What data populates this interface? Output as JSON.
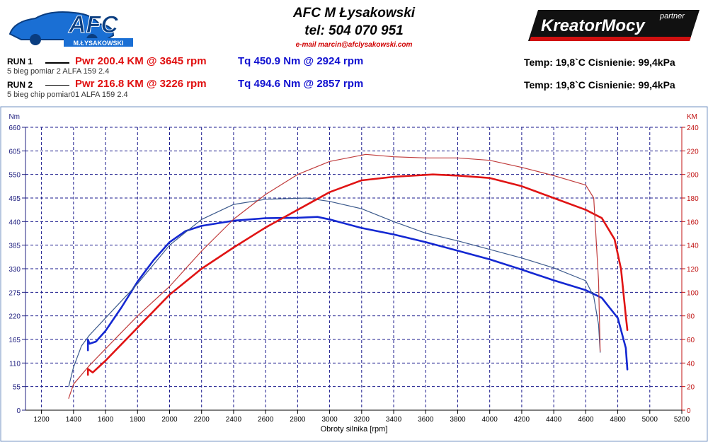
{
  "header": {
    "logo_left_text": "AFC",
    "logo_left_sub": "M.ŁYSAKOWSKI",
    "company": "AFC M Łysakowski",
    "tel": "tel: 504 070 951",
    "email": "e-mail marcin@afclysakowski.com",
    "logo_right_text": "KreatorMocy",
    "logo_right_partner": "partner"
  },
  "runs": [
    {
      "label": "RUN 1",
      "desc": "5 bieg  pomiar 2 ALFA 159 2.4",
      "pwr": "Pwr  200.4 KM @ 3645 rpm",
      "tq": "Tq 450.9 Nm @ 2924 rpm",
      "env": "Temp: 19,8`C   Cisnienie: 99,4kPa"
    },
    {
      "label": "RUN 2",
      "desc": "5 bieg chip pomiar01 ALFA 159 2.4",
      "pwr": "Pwr  216.8 KM @ 3226 rpm",
      "tq": "Tq 494.6 Nm @ 2857 rpm",
      "env": "Temp: 19,8`C   Cisnienie: 99,4kPa"
    }
  ],
  "colors": {
    "torque_run1": "#1428d2",
    "torque_run2": "#3c5a8c",
    "power_run1": "#e01414",
    "power_run2": "#c03c3c",
    "grid": "#1a1a8c",
    "left_axis": "#202080",
    "right_axis": "#c01010"
  },
  "chart_data": {
    "type": "line",
    "xlabel": "Obroty silnika [rpm]",
    "ylabel_left": "Nm",
    "ylabel_right": "KM",
    "xlim": [
      1100,
      5200
    ],
    "ylim_left": [
      0,
      660
    ],
    "ylim_right": [
      0,
      240
    ],
    "x_ticks": [
      1200,
      1400,
      1600,
      1800,
      2000,
      2200,
      2400,
      2600,
      2800,
      3000,
      3200,
      3400,
      3600,
      3800,
      4000,
      4200,
      4400,
      4600,
      4800,
      5000,
      5200
    ],
    "y_left_ticks": [
      0,
      55,
      110,
      165,
      220,
      275,
      330,
      385,
      440,
      495,
      550,
      605,
      660
    ],
    "y_right_ticks": [
      0,
      20,
      40,
      60,
      80,
      100,
      120,
      140,
      160,
      180,
      200,
      220,
      240
    ],
    "grid": true,
    "series": [
      {
        "name": "RUN 1",
        "quantity": "torque",
        "axis": "left",
        "points": [
          [
            1490,
            140
          ],
          [
            1490,
            165
          ],
          [
            1500,
            155
          ],
          [
            1540,
            160
          ],
          [
            1600,
            185
          ],
          [
            1700,
            240
          ],
          [
            1800,
            300
          ],
          [
            1900,
            350
          ],
          [
            2000,
            392
          ],
          [
            2100,
            418
          ],
          [
            2200,
            430
          ],
          [
            2400,
            442
          ],
          [
            2600,
            448
          ],
          [
            2800,
            449
          ],
          [
            2924,
            451
          ],
          [
            3000,
            445
          ],
          [
            3200,
            425
          ],
          [
            3400,
            410
          ],
          [
            3600,
            392
          ],
          [
            3800,
            372
          ],
          [
            4000,
            352
          ],
          [
            4200,
            328
          ],
          [
            4400,
            303
          ],
          [
            4600,
            280
          ],
          [
            4700,
            262
          ],
          [
            4800,
            215
          ],
          [
            4850,
            145
          ],
          [
            4860,
            95
          ]
        ]
      },
      {
        "name": "RUN 2",
        "quantity": "torque",
        "axis": "left",
        "points": [
          [
            1370,
            55
          ],
          [
            1400,
            100
          ],
          [
            1450,
            150
          ],
          [
            1500,
            175
          ],
          [
            1600,
            215
          ],
          [
            1800,
            295
          ],
          [
            2000,
            385
          ],
          [
            2200,
            445
          ],
          [
            2400,
            480
          ],
          [
            2600,
            492
          ],
          [
            2857,
            495
          ],
          [
            3000,
            487
          ],
          [
            3200,
            470
          ],
          [
            3400,
            440
          ],
          [
            3600,
            413
          ],
          [
            3800,
            395
          ],
          [
            4000,
            375
          ],
          [
            4200,
            355
          ],
          [
            4400,
            332
          ],
          [
            4600,
            302
          ],
          [
            4650,
            265
          ],
          [
            4680,
            200
          ],
          [
            4690,
            135
          ]
        ]
      },
      {
        "name": "RUN 1",
        "quantity": "power",
        "axis": "right",
        "points": [
          [
            1490,
            30
          ],
          [
            1490,
            35
          ],
          [
            1520,
            32
          ],
          [
            1600,
            42
          ],
          [
            1800,
            70
          ],
          [
            2000,
            98
          ],
          [
            2200,
            120
          ],
          [
            2400,
            138
          ],
          [
            2600,
            155
          ],
          [
            2800,
            170
          ],
          [
            3000,
            185
          ],
          [
            3200,
            195
          ],
          [
            3400,
            198
          ],
          [
            3645,
            200
          ],
          [
            3800,
            199
          ],
          [
            4000,
            197
          ],
          [
            4200,
            190
          ],
          [
            4400,
            180
          ],
          [
            4600,
            170
          ],
          [
            4700,
            163
          ],
          [
            4780,
            145
          ],
          [
            4820,
            120
          ],
          [
            4850,
            80
          ],
          [
            4860,
            68
          ]
        ]
      },
      {
        "name": "RUN 2",
        "quantity": "power",
        "axis": "right",
        "points": [
          [
            1370,
            10
          ],
          [
            1400,
            22
          ],
          [
            1500,
            38
          ],
          [
            1600,
            52
          ],
          [
            1800,
            80
          ],
          [
            2000,
            105
          ],
          [
            2200,
            135
          ],
          [
            2400,
            162
          ],
          [
            2600,
            183
          ],
          [
            2800,
            200
          ],
          [
            3000,
            211
          ],
          [
            3226,
            217
          ],
          [
            3400,
            215
          ],
          [
            3600,
            214
          ],
          [
            3800,
            214
          ],
          [
            4000,
            212
          ],
          [
            4200,
            206
          ],
          [
            4400,
            199
          ],
          [
            4600,
            191
          ],
          [
            4650,
            180
          ],
          [
            4680,
            110
          ],
          [
            4690,
            50
          ]
        ]
      }
    ]
  }
}
